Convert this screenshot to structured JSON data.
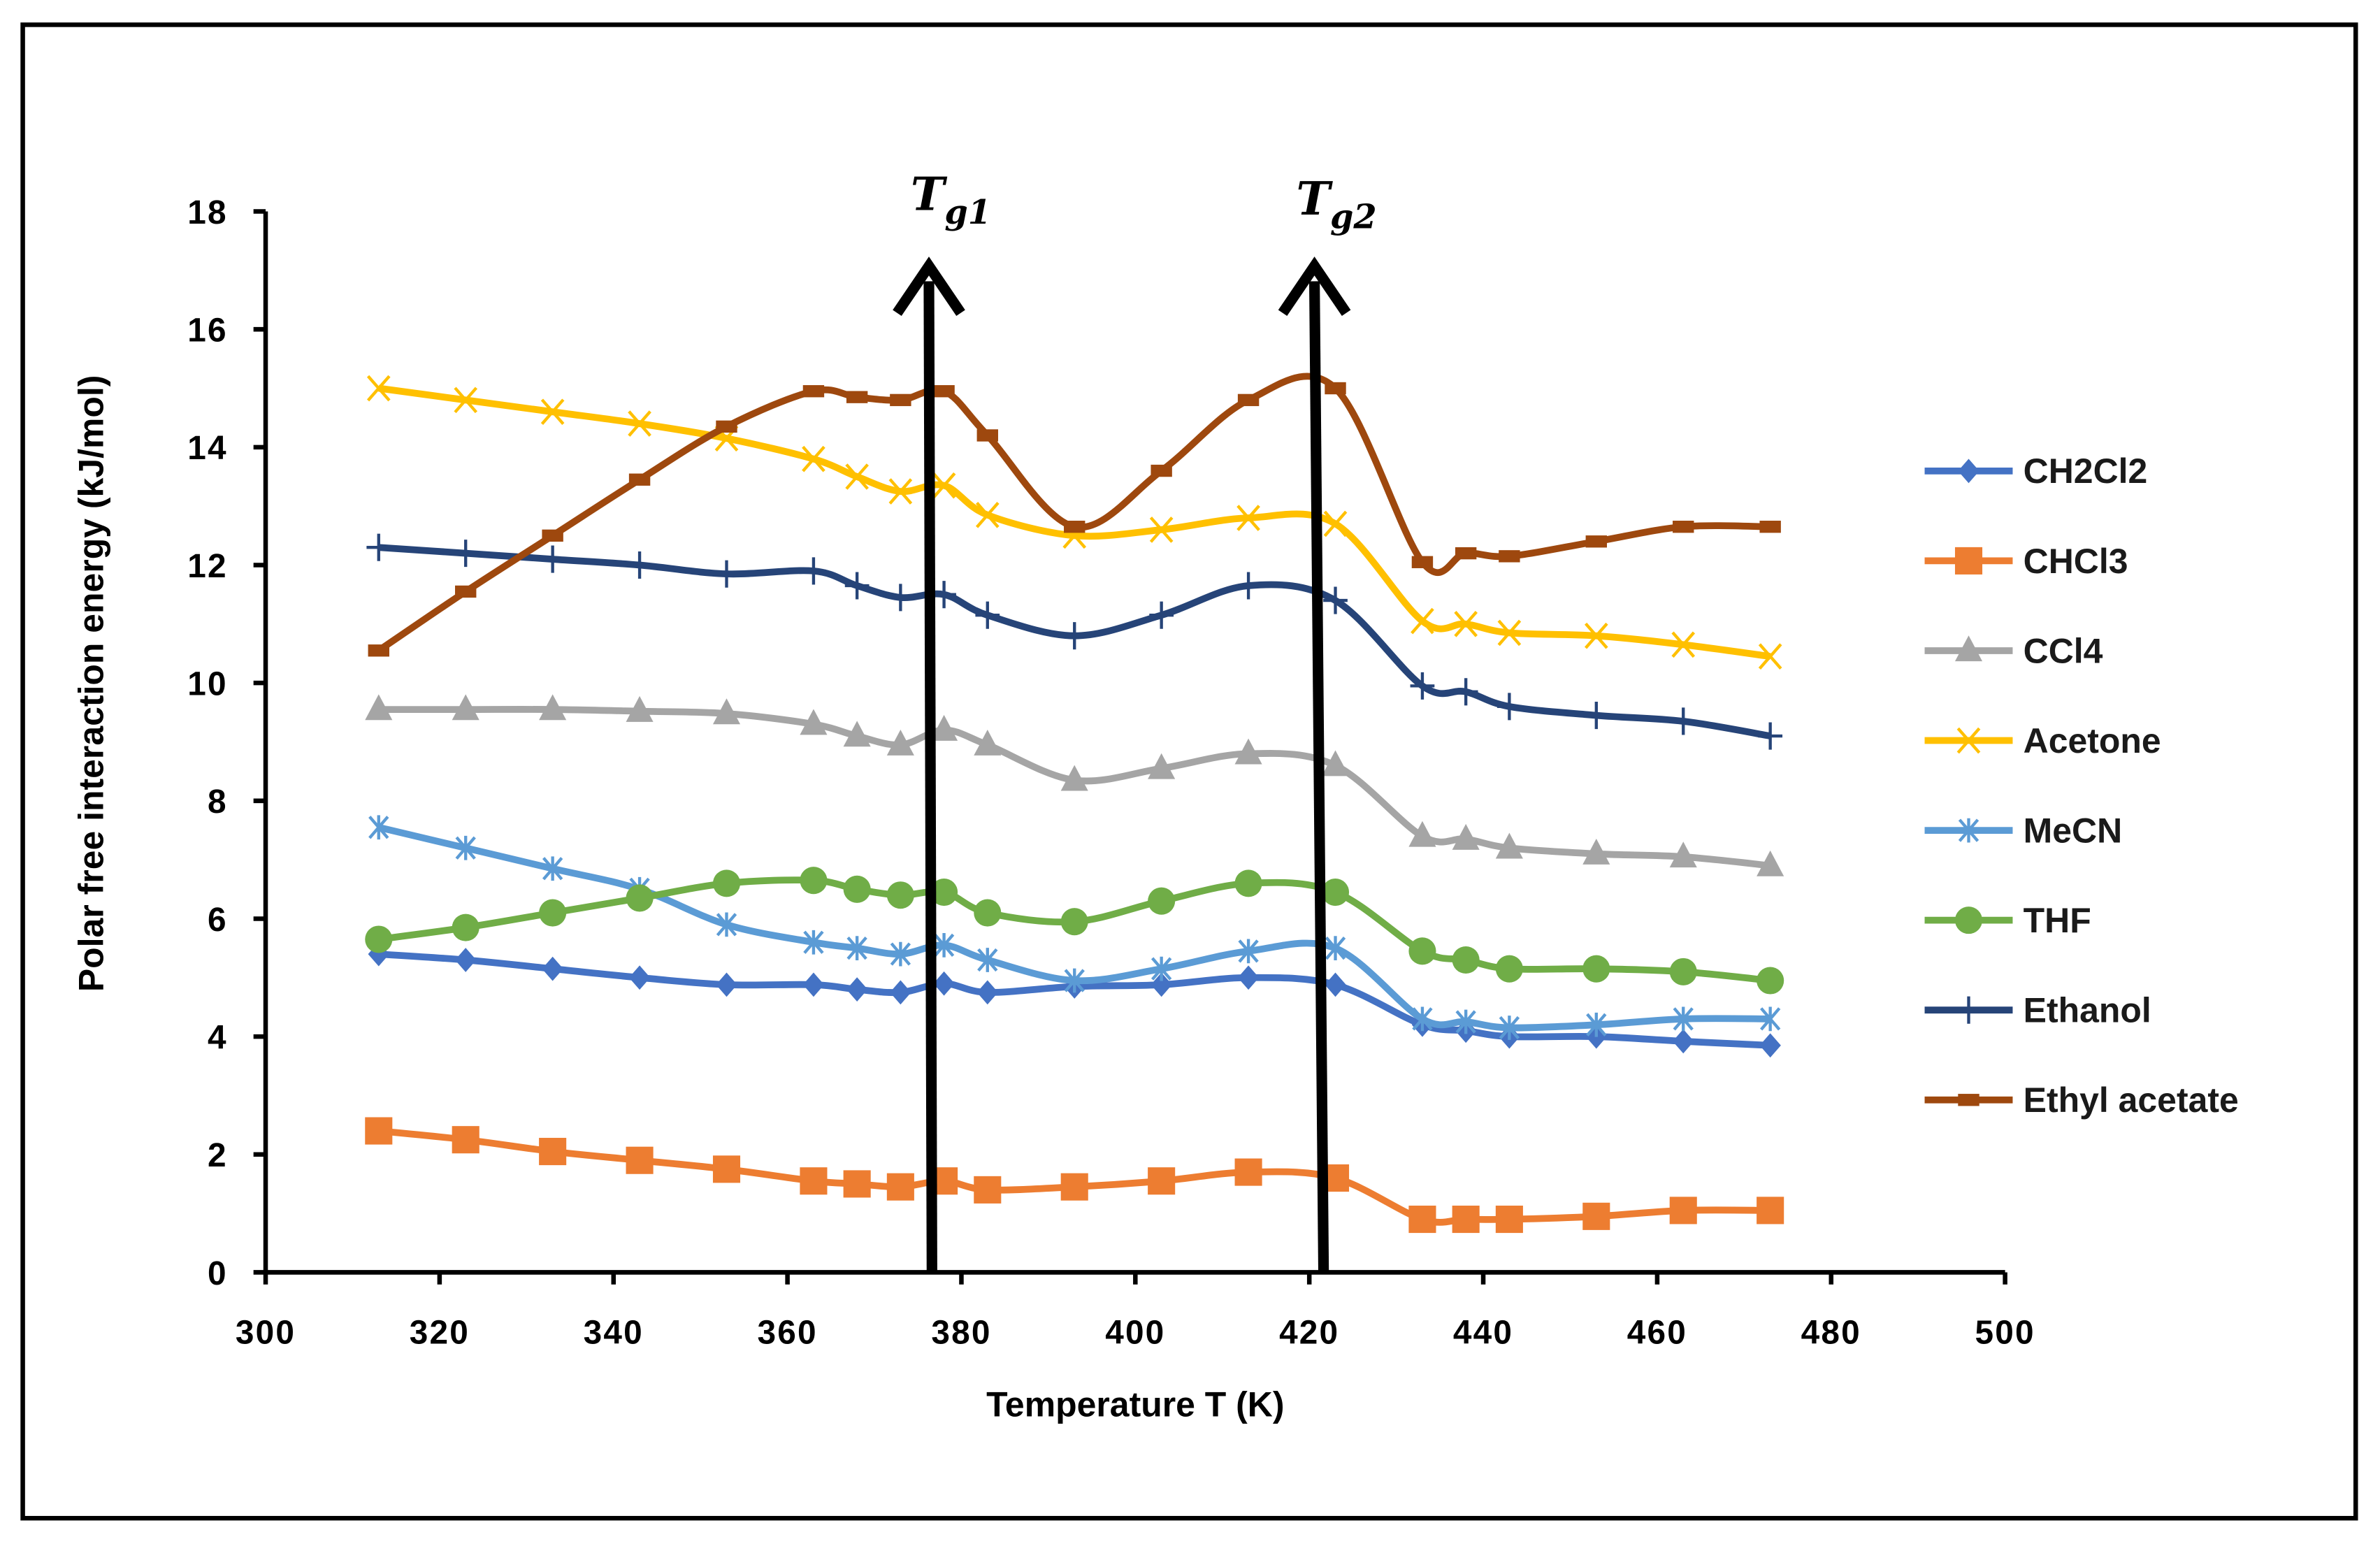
{
  "chart_data": {
    "type": "line",
    "title": "",
    "xlabel": "Temperature T (K)",
    "ylabel": "Polar free interaction energy (kJ/mol)",
    "xlim": [
      300,
      500
    ],
    "ylim": [
      0,
      18
    ],
    "xticks": [
      300,
      320,
      340,
      360,
      380,
      400,
      420,
      440,
      460,
      480,
      500
    ],
    "yticks": [
      0,
      2,
      4,
      6,
      8,
      10,
      12,
      14,
      16,
      18
    ],
    "grid": false,
    "smoothed": true,
    "legend_position": "right",
    "x": [
      313,
      323,
      333,
      343,
      353,
      363,
      368,
      373,
      378,
      383,
      393,
      403,
      413,
      423,
      433,
      438,
      443,
      453,
      463,
      473
    ],
    "series": [
      {
        "name": "CH2Cl2",
        "color": "#4472C4",
        "marker": "diamond",
        "values": [
          5.4,
          5.3,
          5.15,
          5.0,
          4.88,
          4.88,
          4.8,
          4.75,
          4.9,
          4.75,
          4.85,
          4.88,
          5.0,
          4.88,
          4.2,
          4.1,
          4.0,
          4.0,
          3.92,
          3.85
        ]
      },
      {
        "name": "CHCl3",
        "color": "#ED7D31",
        "marker": "square",
        "values": [
          2.4,
          2.25,
          2.05,
          1.9,
          1.75,
          1.55,
          1.5,
          1.45,
          1.55,
          1.4,
          1.45,
          1.55,
          1.7,
          1.6,
          0.9,
          0.9,
          0.9,
          0.95,
          1.05,
          1.05
        ]
      },
      {
        "name": "CCl4",
        "color": "#A5A5A5",
        "marker": "triangle",
        "values": [
          9.55,
          9.55,
          9.55,
          9.52,
          9.48,
          9.3,
          9.1,
          8.95,
          9.2,
          8.95,
          8.35,
          8.55,
          8.8,
          8.6,
          7.4,
          7.35,
          7.2,
          7.1,
          7.05,
          6.9
        ]
      },
      {
        "name": "Acetone",
        "color": "#FFC000",
        "marker": "x",
        "values": [
          15.0,
          14.8,
          14.6,
          14.4,
          14.15,
          13.8,
          13.5,
          13.25,
          13.35,
          12.85,
          12.5,
          12.6,
          12.8,
          12.7,
          11.05,
          11.0,
          10.85,
          10.8,
          10.65,
          10.45
        ]
      },
      {
        "name": "MeCN",
        "color": "#5B9BD5",
        "marker": "asterisk",
        "values": [
          7.55,
          7.2,
          6.85,
          6.5,
          5.9,
          5.6,
          5.5,
          5.4,
          5.55,
          5.3,
          4.95,
          5.15,
          5.45,
          5.5,
          4.3,
          4.25,
          4.15,
          4.2,
          4.3,
          4.3
        ]
      },
      {
        "name": "THF",
        "color": "#70AD47",
        "marker": "circle",
        "values": [
          5.65,
          5.85,
          6.1,
          6.35,
          6.6,
          6.65,
          6.5,
          6.4,
          6.45,
          6.1,
          5.95,
          6.3,
          6.6,
          6.45,
          5.45,
          5.3,
          5.15,
          5.15,
          5.1,
          4.95
        ]
      },
      {
        "name": "Ethanol",
        "color": "#264478",
        "marker": "plus",
        "values": [
          12.3,
          12.2,
          12.1,
          12.0,
          11.85,
          11.9,
          11.65,
          11.45,
          11.5,
          11.15,
          10.8,
          11.15,
          11.65,
          11.4,
          9.95,
          9.85,
          9.6,
          9.45,
          9.35,
          9.1
        ]
      },
      {
        "name": "Ethyl acetate",
        "color": "#9E480E",
        "marker": "dash",
        "values": [
          10.55,
          11.55,
          12.5,
          13.45,
          14.35,
          14.95,
          14.85,
          14.8,
          14.95,
          14.2,
          12.65,
          13.6,
          14.8,
          15.0,
          12.05,
          12.2,
          12.15,
          12.4,
          12.65,
          12.65
        ]
      }
    ],
    "annotations": [
      {
        "label": "T",
        "subscript": "g1",
        "x": 378,
        "type": "vertical-arrow"
      },
      {
        "label": "T",
        "subscript": "g2",
        "x": 422,
        "type": "vertical-arrow"
      }
    ]
  }
}
